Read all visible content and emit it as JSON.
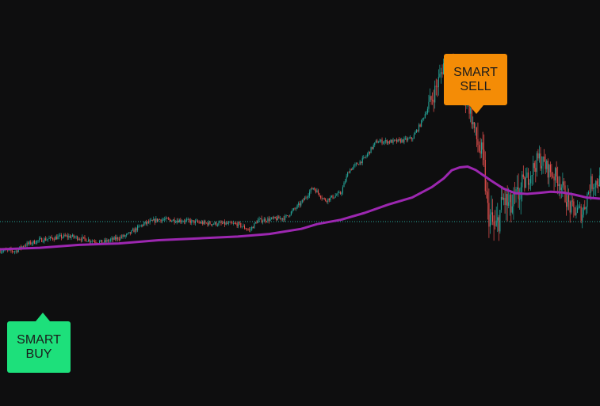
{
  "chart_data": {
    "type": "candlestick",
    "title": "",
    "xlabel": "",
    "ylabel": "",
    "axes_visible": false,
    "grid": false,
    "background": "#0e0e0f",
    "colors": {
      "up": "#26a69a",
      "down": "#ef5350",
      "ma": "#9c27b0",
      "reference_line": "#26a69a"
    },
    "reference_line": {
      "y": 0.18,
      "style": "dotted"
    },
    "ma_line": {
      "x": [
        0,
        50,
        100,
        150,
        200,
        250,
        300,
        340,
        380,
        400,
        430,
        460,
        490,
        520,
        545,
        560,
        570,
        580,
        590,
        600,
        610,
        620,
        635,
        650,
        665,
        680,
        695,
        710,
        725,
        740,
        757
      ],
      "y": [
        -0.76,
        -0.72,
        -0.64,
        -0.6,
        -0.51,
        -0.46,
        -0.41,
        -0.34,
        -0.2,
        -0.07,
        0.05,
        0.24,
        0.47,
        0.66,
        0.95,
        1.19,
        1.41,
        1.49,
        1.51,
        1.42,
        1.27,
        1.12,
        0.91,
        0.78,
        0.76,
        0.79,
        0.82,
        0.8,
        0.74,
        0.66,
        0.63
      ]
    },
    "price_path": {
      "x": [
        0,
        20,
        30,
        50,
        80,
        90,
        120,
        130,
        160,
        180,
        200,
        230,
        260,
        300,
        315,
        325,
        350,
        360,
        380,
        395,
        410,
        430,
        440,
        460,
        475,
        500,
        520,
        530,
        545,
        555,
        560,
        565,
        570,
        580,
        590,
        600,
        610,
        615,
        625,
        635,
        645,
        660,
        680,
        690,
        705,
        720,
        735,
        745,
        757
      ],
      "y": [
        -0.79,
        -0.81,
        -0.65,
        -0.51,
        -0.41,
        -0.41,
        -0.54,
        -0.57,
        -0.38,
        -0.08,
        0.06,
        0.03,
        -0.05,
        -0.07,
        -0.24,
        0.03,
        0.08,
        0.11,
        0.51,
        0.94,
        0.58,
        0.78,
        1.4,
        1.74,
        2.2,
        2.2,
        2.28,
        2.66,
        3.38,
        3.97,
        4.37,
        4.1,
        4.19,
        3.5,
        3.35,
        2.37,
        1.62,
        0.31,
        -0.28,
        0.62,
        0.33,
        0.99,
        1.74,
        1.47,
        1.15,
        0.35,
        0.24,
        1.04,
        1.13
      ]
    },
    "signals": [
      {
        "label_lines": [
          "SMART",
          "SELL"
        ],
        "color": "#f48c06",
        "direction": "down"
      },
      {
        "label_lines": [
          "SMART",
          "BUY"
        ],
        "color": "#1de07b",
        "direction": "up"
      }
    ]
  }
}
